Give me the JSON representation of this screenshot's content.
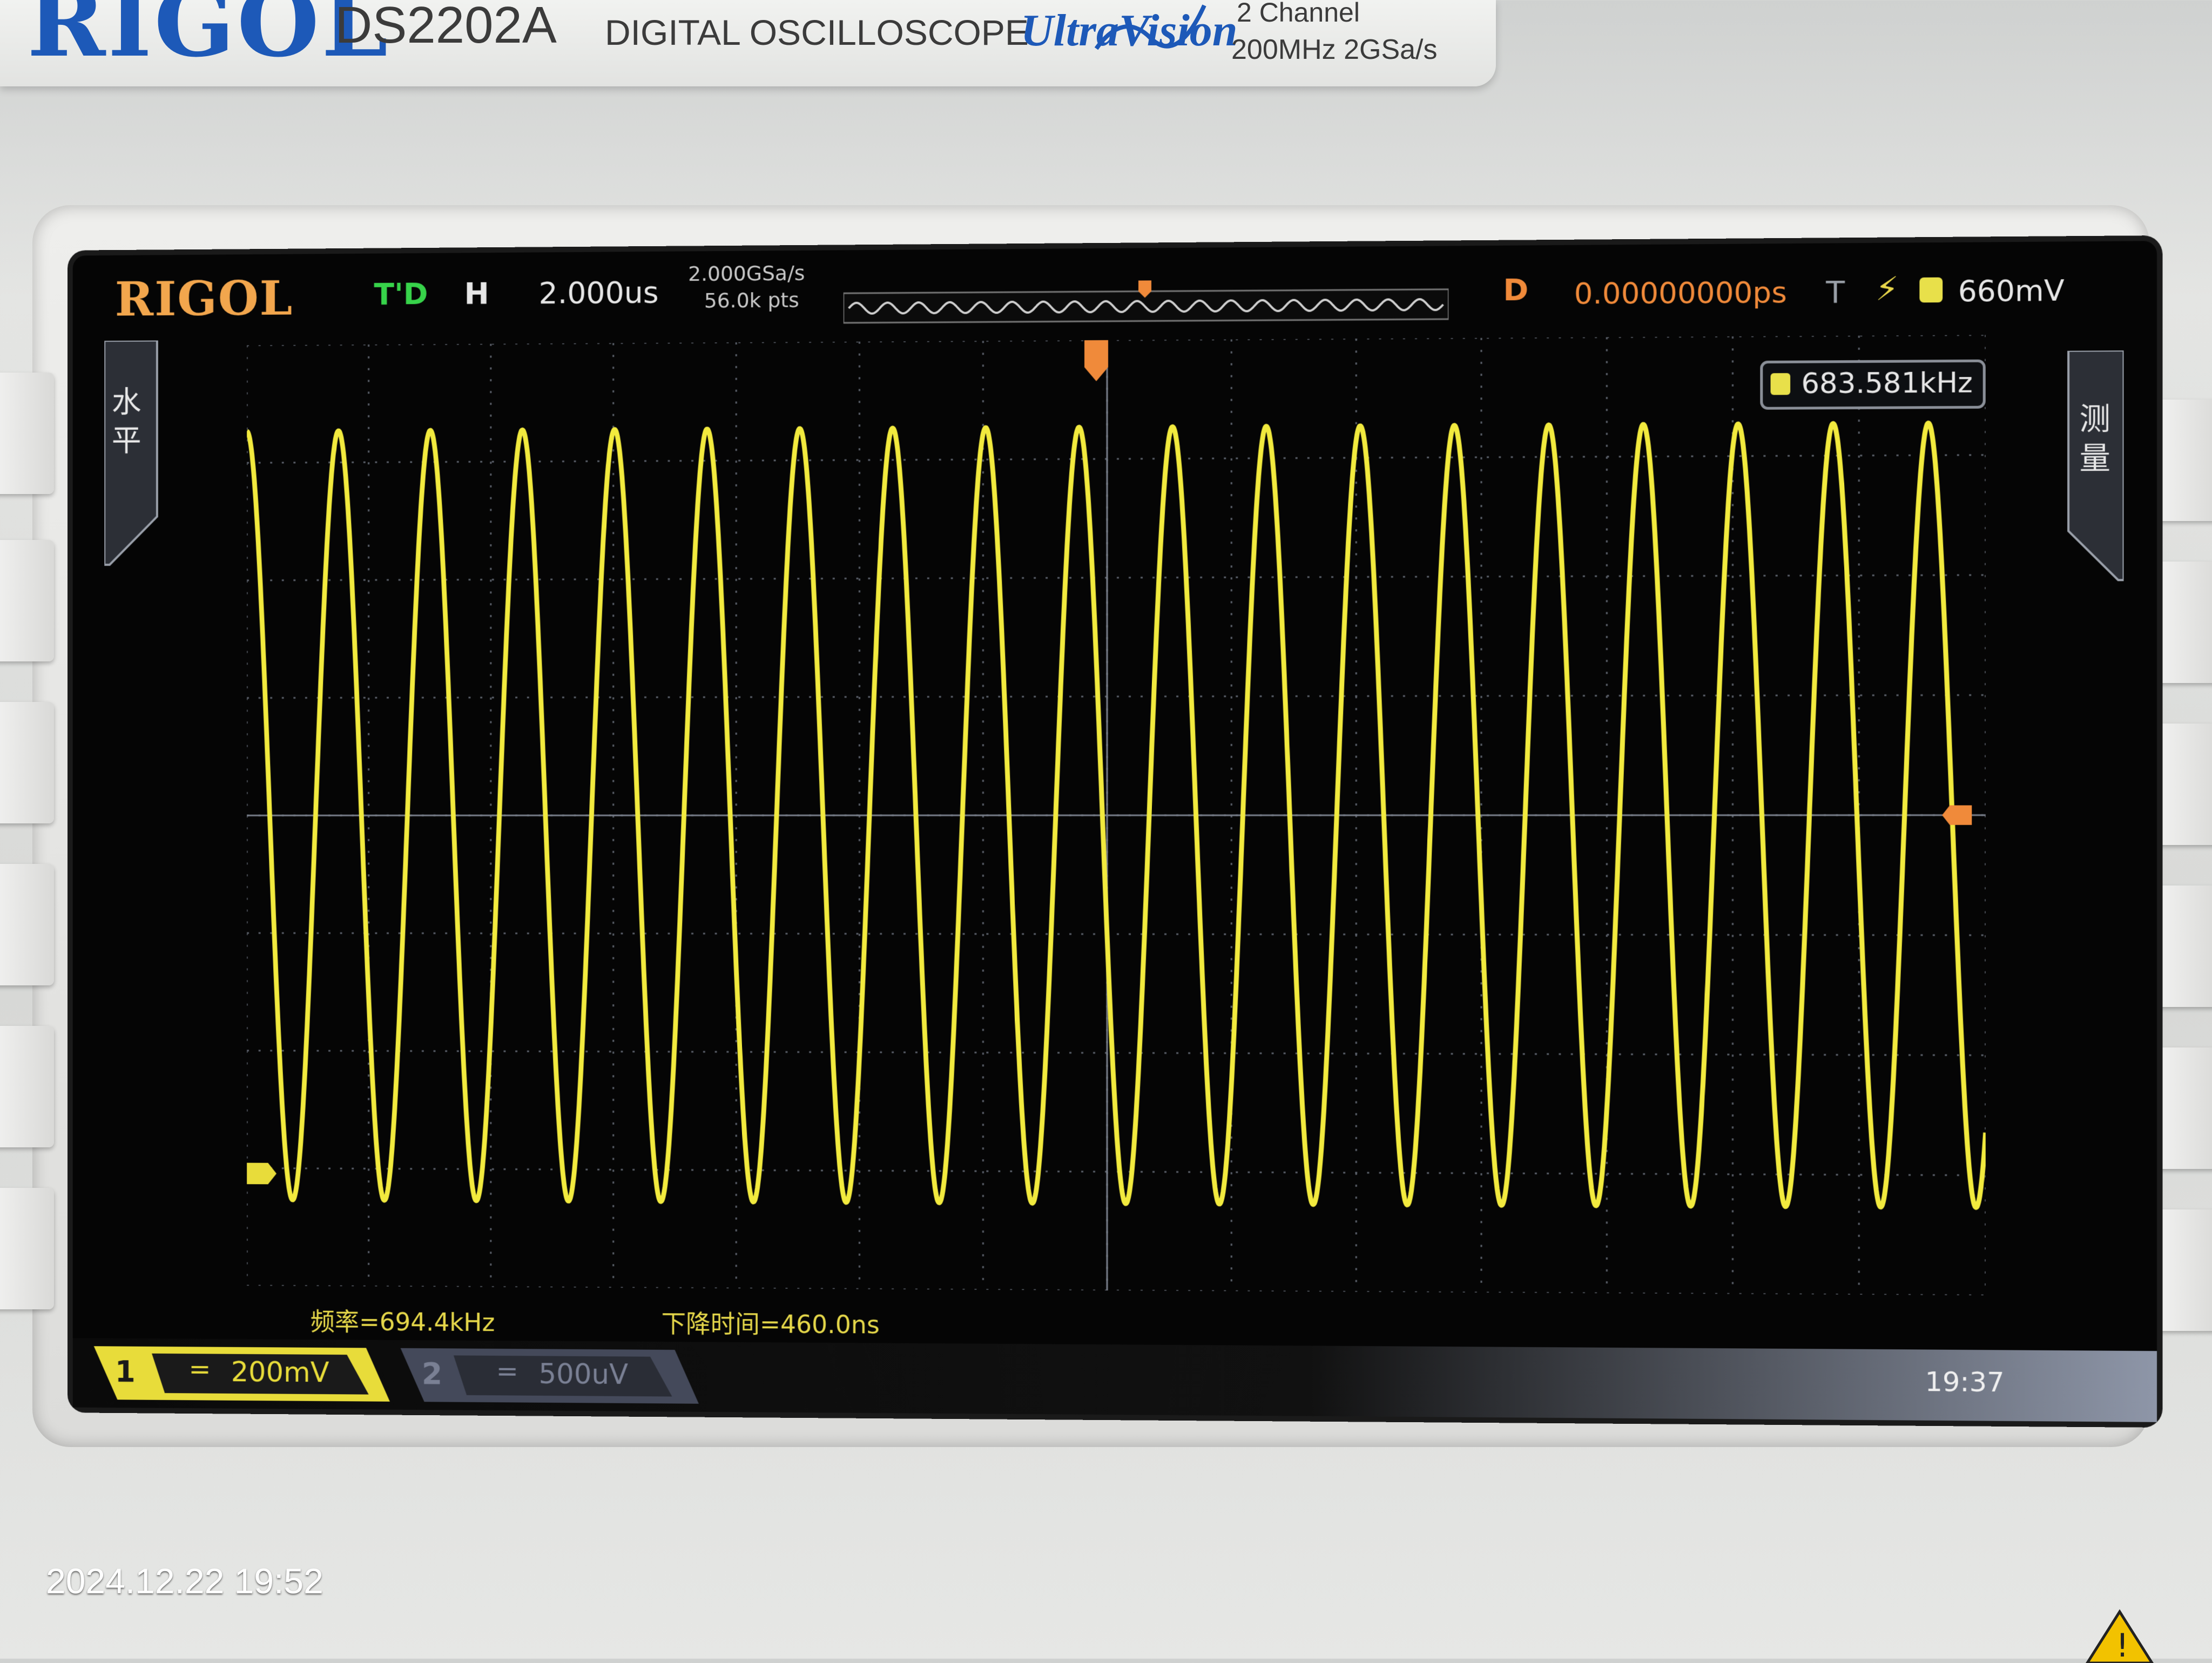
{
  "instrument": {
    "brand": "RIGOL",
    "model": "DS2202A",
    "description": "DIGITAL OSCILLOSCOPE",
    "series": "UltraVision",
    "channels_spec": "2 Channel",
    "bandwidth_spec": "200MHz  2GSa/s"
  },
  "screen": {
    "logo": "RIGOL",
    "run_state": "T'D",
    "timebase_label": "H",
    "timebase": "2.000us",
    "sample_rate": "2.000GSa/s",
    "memory_depth": "56.0k pts",
    "delay_label": "D",
    "delay_value": "0.00000000ps",
    "trigger_label": "T",
    "trigger_edge_icon": "rising-edge-icon",
    "trigger_level": "660mV",
    "left_tab": "水平",
    "right_tab": "测量",
    "frequency_counter": "683.581kHz",
    "measurements": {
      "frequency": "频率=694.4kHz",
      "fall_time": "下降时间=460.0ns"
    },
    "ch1": {
      "number": "1",
      "coupling": "=",
      "scale": "200mV"
    },
    "ch2": {
      "number": "2",
      "coupling": "=",
      "scale": "500uV"
    },
    "clock": "19:37"
  },
  "photo_timestamp": "2024.12.22 19:52",
  "colors": {
    "ch1_trace": "#f2ea3e",
    "grid": "#5b606a",
    "accent_orange": "#f08a3a",
    "brand_blue": "#1d59b8"
  },
  "waveform": {
    "type": "sine",
    "cycles_on_screen": 18.6,
    "amplitude_fraction": 0.95
  }
}
